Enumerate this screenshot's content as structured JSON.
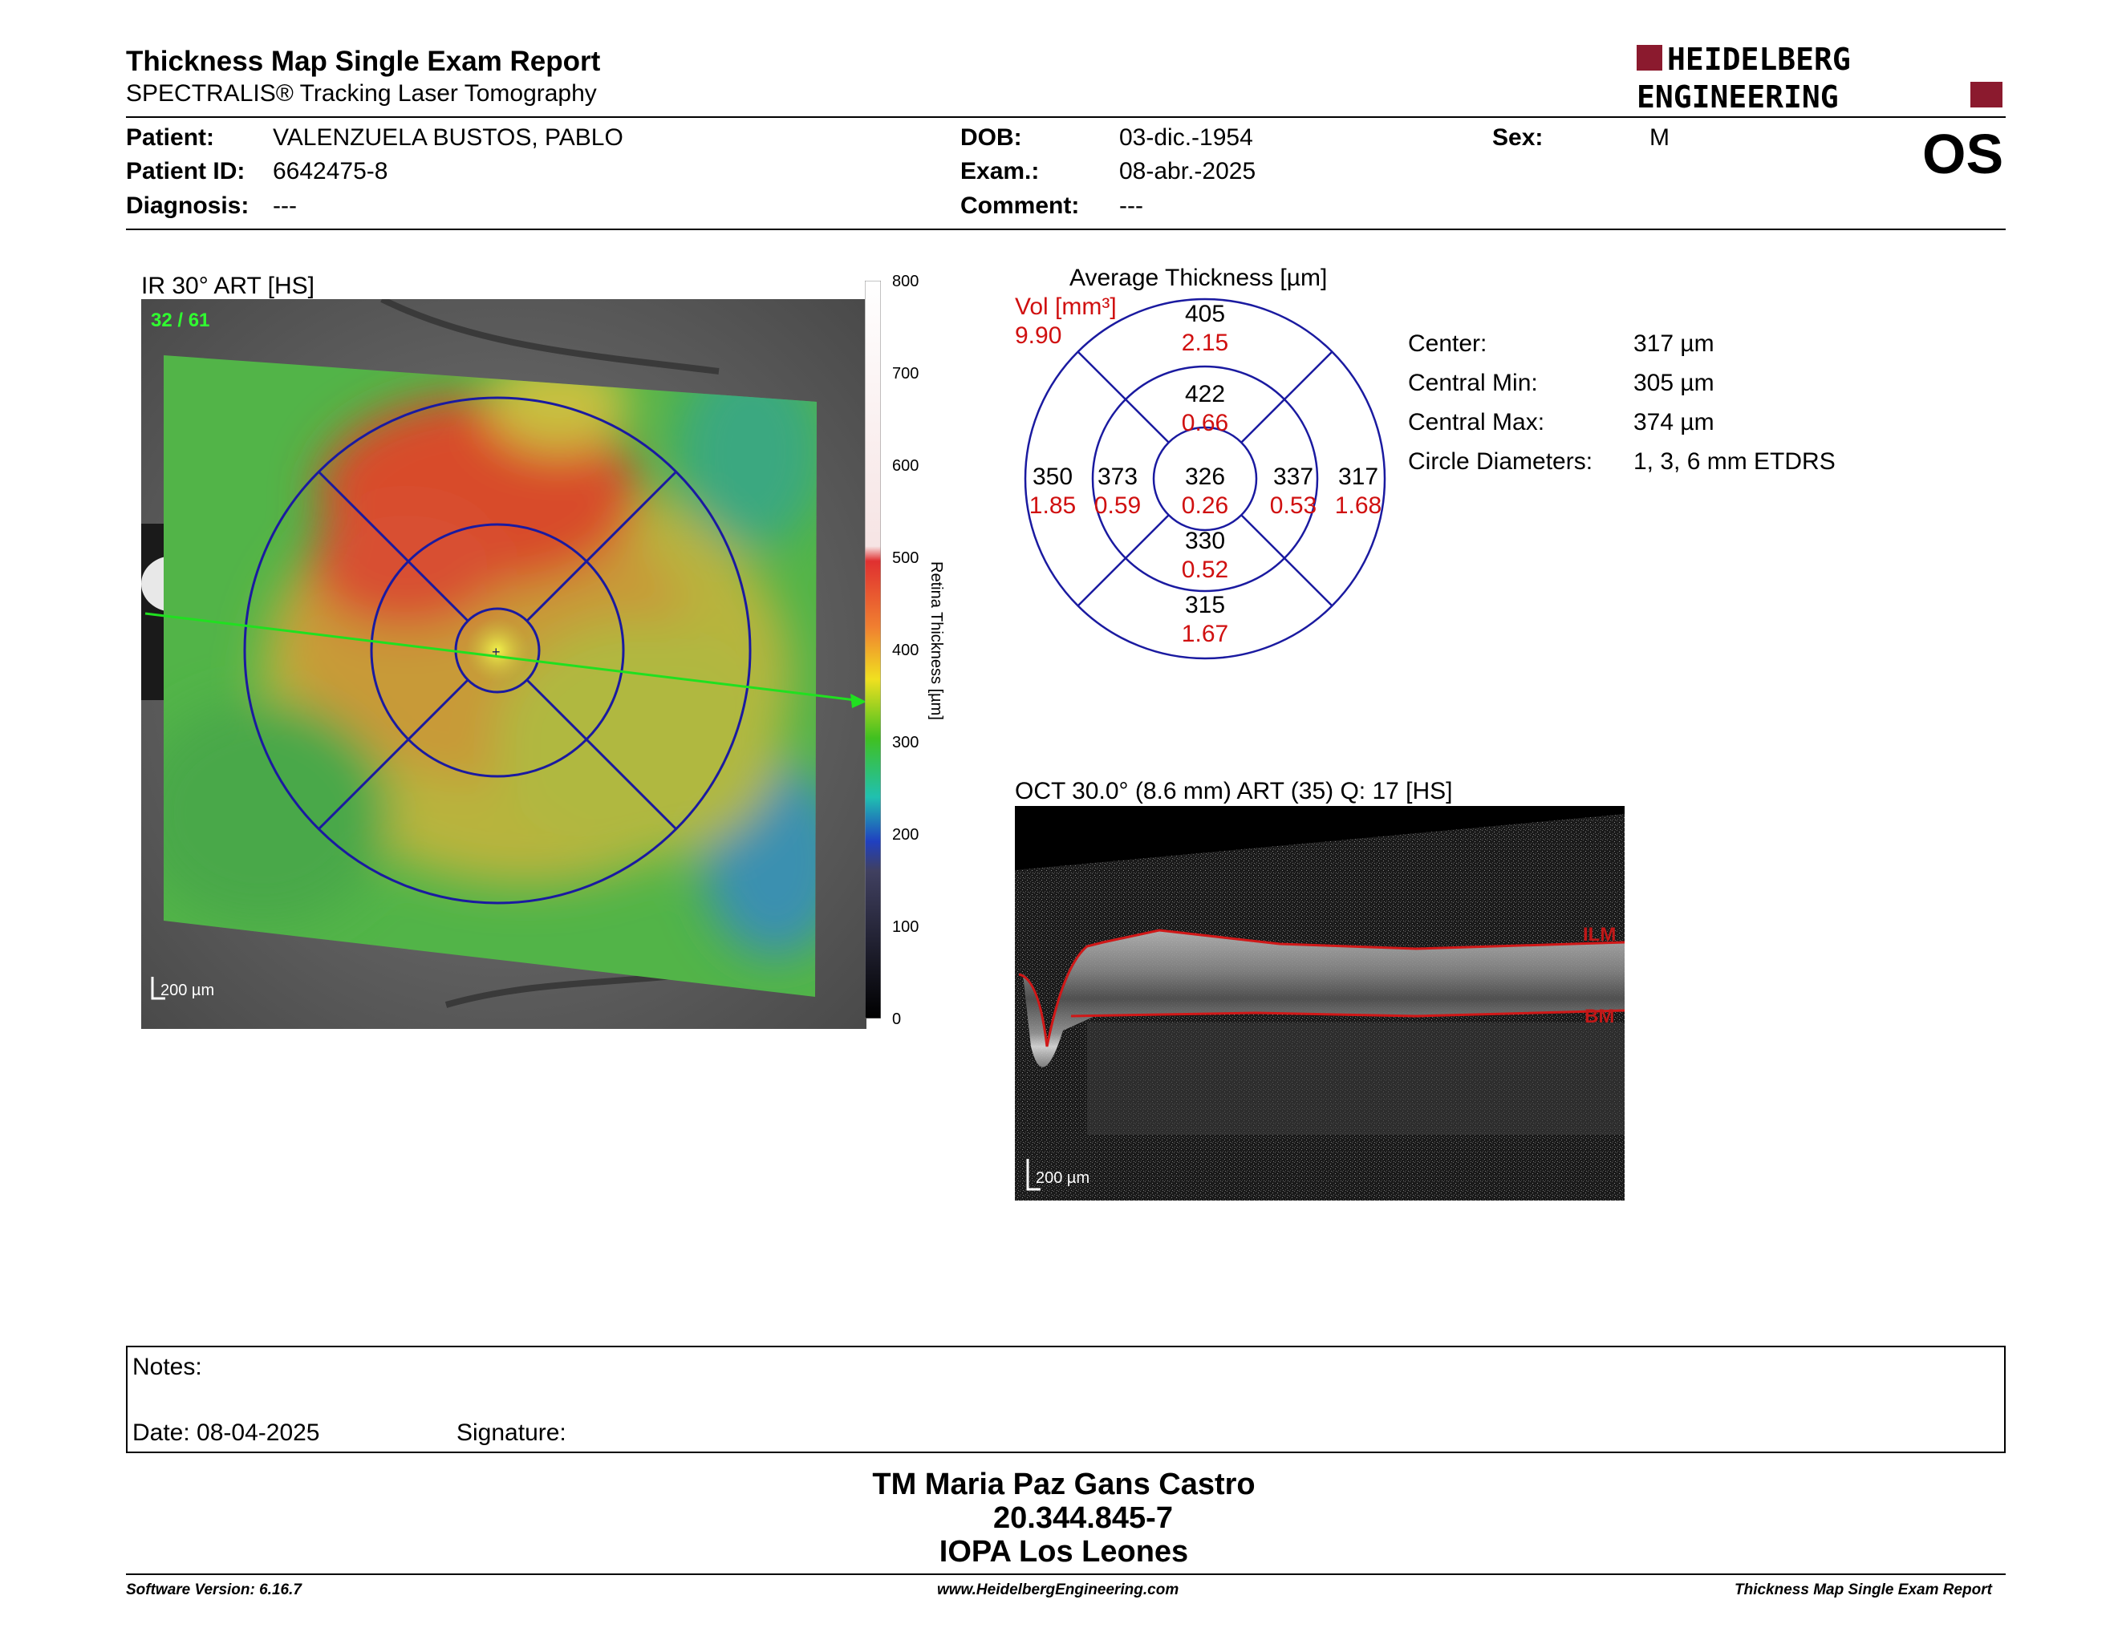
{
  "header": {
    "title": "Thickness Map Single Exam Report",
    "subtitle": "SPECTRALIS® Tracking Laser Tomography",
    "logo_line1": "HEIDELBERG",
    "logo_line2": "ENGINEERING",
    "eye": "OS"
  },
  "patient": {
    "patient_label": "Patient:",
    "patient_value": "VALENZUELA BUSTOS, PABLO",
    "id_label": "Patient ID:",
    "id_value": "6642475-8",
    "diagnosis_label": "Diagnosis:",
    "diagnosis_value": "---",
    "dob_label": "DOB:",
    "dob_value": "03-dic.-1954",
    "exam_label": "Exam.:",
    "exam_value": "08-abr.-2025",
    "comment_label": "Comment:",
    "comment_value": "---",
    "sex_label": "Sex:",
    "sex_value": "M"
  },
  "ir_image": {
    "title": "IR 30° ART [HS]",
    "frame_counter": "32 / 61",
    "scale_label": "200 µm",
    "colorbar_ticks": [
      "800",
      "700",
      "600",
      "500",
      "400",
      "300",
      "200",
      "100",
      "0"
    ],
    "colorbar_label": "Retina Thickness [µm]"
  },
  "etdrs": {
    "title": "Average Thickness [µm]",
    "vol_label": "Vol [mm³]",
    "vol_total": "9.90",
    "sectors": {
      "outer_superior": {
        "thickness": "405",
        "volume": "2.15"
      },
      "inner_superior": {
        "thickness": "422",
        "volume": "0.66"
      },
      "outer_temporal": {
        "thickness": "350",
        "volume": "1.85"
      },
      "inner_temporal": {
        "thickness": "373",
        "volume": "0.59"
      },
      "center": {
        "thickness": "326",
        "volume": "0.26"
      },
      "inner_nasal": {
        "thickness": "337",
        "volume": "0.53"
      },
      "outer_nasal": {
        "thickness": "317",
        "volume": "1.68"
      },
      "inner_inferior": {
        "thickness": "330",
        "volume": "0.52"
      },
      "outer_inferior": {
        "thickness": "315",
        "volume": "1.67"
      }
    }
  },
  "stats": {
    "center_label": "Center:",
    "center_value": "317 µm",
    "min_label": "Central Min:",
    "min_value": "305 µm",
    "max_label": "Central Max:",
    "max_value": "374 µm",
    "diam_label": "Circle Diameters:",
    "diam_value": "1, 3, 6 mm ETDRS"
  },
  "oct": {
    "title": "OCT 30.0° (8.6 mm) ART (35) Q: 17 [HS]",
    "ilm_label": "ILM",
    "bm_label": "BM",
    "scale_label": "200 µm"
  },
  "notes": {
    "notes_label": "Notes:",
    "date_label": "Date: 08-04-2025",
    "signature_label": "Signature:"
  },
  "signature_block": {
    "name": "TM Maria Paz Gans Castro",
    "rut": "20.344.845-7",
    "institution": "IOPA Los Leones"
  },
  "footer": {
    "software": "Software Version: 6.16.7",
    "website": "www.HeidelbergEngineering.com",
    "report": "Thickness Map Single Exam Report"
  },
  "colors": {
    "brand": "#8b1a2e",
    "grid_blue": "#1a1aa0",
    "volume_red": "#d01010"
  }
}
